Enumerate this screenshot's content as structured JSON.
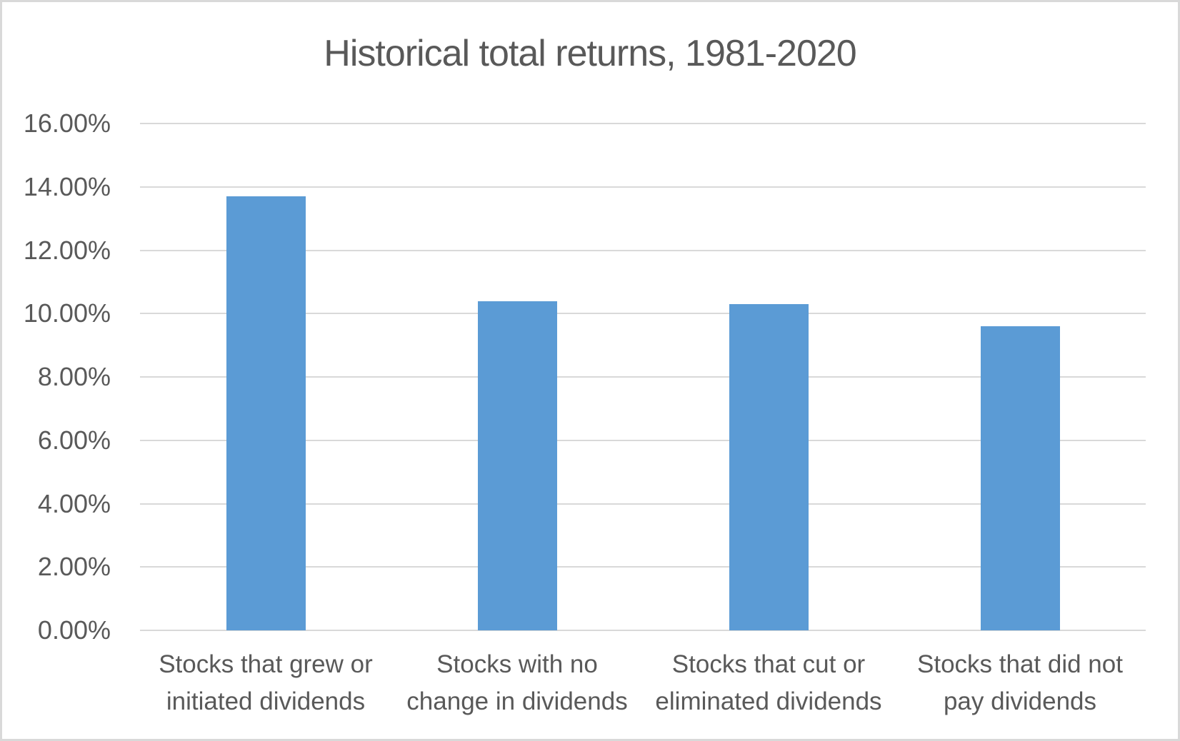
{
  "chart_data": {
    "type": "bar",
    "title": "Historical total returns, 1981-2020",
    "categories": [
      "Stocks that grew or initiated dividends",
      "Stocks with no change in dividends",
      "Stocks that cut or eliminated dividends",
      "Stocks that did not pay dividends"
    ],
    "categories_wrapped": [
      [
        "Stocks that grew or",
        "initiated dividends"
      ],
      [
        "Stocks with no",
        "change in dividends"
      ],
      [
        "Stocks that cut or",
        "eliminated dividends"
      ],
      [
        "Stocks that did not",
        "pay dividends"
      ]
    ],
    "values": [
      13.7,
      10.4,
      10.3,
      9.6
    ],
    "unit": "%",
    "xlabel": "",
    "ylabel": "",
    "ylim": [
      0,
      16
    ],
    "ytick_step": 2,
    "ytick_labels": [
      "0.00%",
      "2.00%",
      "4.00%",
      "6.00%",
      "8.00%",
      "10.00%",
      "12.00%",
      "14.00%",
      "16.00%"
    ],
    "grid": true,
    "legend_position": "none",
    "bar_color": "#5b9bd5",
    "gridline_color": "#d9d9d9",
    "text_color": "#595959",
    "background_color": "#ffffff",
    "border_color": "#d9d9d9"
  }
}
